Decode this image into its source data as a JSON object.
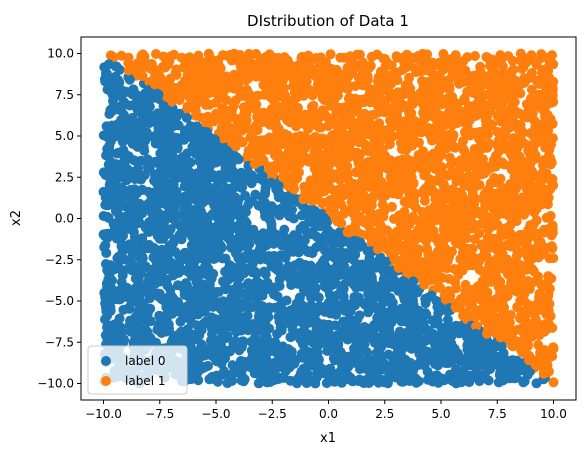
{
  "chart_data": {
    "type": "scatter",
    "title": "DIstribution of Data 1",
    "xlabel": "x1",
    "ylabel": "x2",
    "xlim": [
      -11,
      11
    ],
    "ylim": [
      -11,
      11
    ],
    "xticks": [
      -10.0,
      -7.5,
      -5.0,
      -2.5,
      0.0,
      2.5,
      5.0,
      7.5,
      10.0
    ],
    "yticks": [
      -10.0,
      -7.5,
      -5.0,
      -2.5,
      0.0,
      2.5,
      5.0,
      7.5,
      10.0
    ],
    "xtick_labels": [
      "−10.0",
      "−7.5",
      "−5.0",
      "−2.5",
      "0.0",
      "2.5",
      "5.0",
      "7.5",
      "10.0"
    ],
    "ytick_labels": [
      "−10.0",
      "−7.5",
      "−5.0",
      "−2.5",
      "0.0",
      "2.5",
      "5.0",
      "7.5",
      "10.0"
    ],
    "grid": false,
    "legend_position": "lower-left",
    "point_domain": {
      "x": [
        -10,
        10
      ],
      "y": [
        -10,
        10
      ]
    },
    "decision_boundary": {
      "x1_plus_x2": 0
    },
    "series": [
      {
        "name": "label 0",
        "color": "#1f77b4",
        "rule": "x1 + x2 < 0"
      },
      {
        "name": "label 1",
        "color": "#ff7f0e",
        "rule": "x1 + x2 >= 0"
      }
    ]
  }
}
